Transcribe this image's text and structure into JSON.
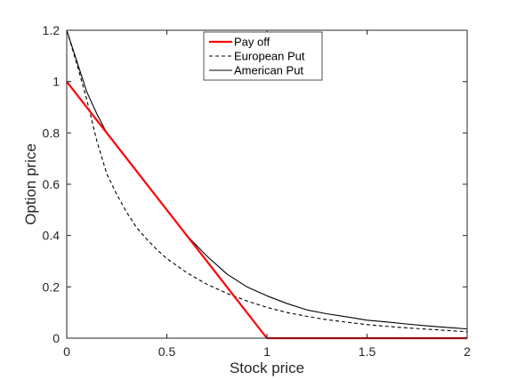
{
  "chart_data": {
    "type": "line",
    "xlabel": "Stock price",
    "ylabel": "Option price",
    "xlim": [
      0,
      2
    ],
    "ylim": [
      0,
      1.2
    ],
    "xticks": [
      0,
      0.5,
      1,
      1.5,
      2
    ],
    "xtick_labels": [
      "0",
      "0.5",
      "1",
      "1.5",
      "2"
    ],
    "yticks": [
      0,
      0.2,
      0.4,
      0.6,
      0.8,
      1,
      1.2
    ],
    "ytick_labels": [
      "0",
      "0.2",
      "0.4",
      "0.6",
      "0.8",
      "1",
      "1.2"
    ],
    "grid": false,
    "box": true,
    "legend_position": "top-center",
    "series": [
      {
        "name": "Pay off",
        "color": "#ff0000",
        "style": "solid",
        "x": [
          0,
          1,
          2
        ],
        "y": [
          1,
          0,
          0
        ]
      },
      {
        "name": "European Put",
        "color": "#000000",
        "style": "dashed",
        "x": [
          0,
          0.05,
          0.1,
          0.15,
          0.2,
          0.25,
          0.3,
          0.35,
          0.4,
          0.45,
          0.5,
          0.6,
          0.7,
          0.8,
          0.9,
          1.0,
          1.1,
          1.2,
          1.3,
          1.4,
          1.5,
          1.6,
          1.7,
          1.8,
          1.9,
          2.0
        ],
        "y": [
          1.2,
          1.07,
          0.93,
          0.77,
          0.64,
          0.56,
          0.49,
          0.43,
          0.385,
          0.345,
          0.31,
          0.255,
          0.21,
          0.175,
          0.145,
          0.12,
          0.1,
          0.085,
          0.072,
          0.062,
          0.053,
          0.046,
          0.04,
          0.035,
          0.03,
          0.025
        ]
      },
      {
        "name": "American Put",
        "color": "#000000",
        "style": "solid",
        "x": [
          0,
          0.05,
          0.1,
          0.15,
          0.2,
          0.3,
          0.4,
          0.5,
          0.6,
          0.7,
          0.8,
          0.9,
          1.0,
          1.1,
          1.2,
          1.3,
          1.4,
          1.5,
          1.6,
          1.7,
          1.8,
          1.9,
          2.0
        ],
        "y": [
          1.2,
          1.08,
          0.96,
          0.875,
          0.8,
          0.7,
          0.6,
          0.5,
          0.4,
          0.32,
          0.25,
          0.2,
          0.165,
          0.135,
          0.11,
          0.095,
          0.083,
          0.07,
          0.063,
          0.055,
          0.048,
          0.042,
          0.036
        ]
      }
    ]
  }
}
